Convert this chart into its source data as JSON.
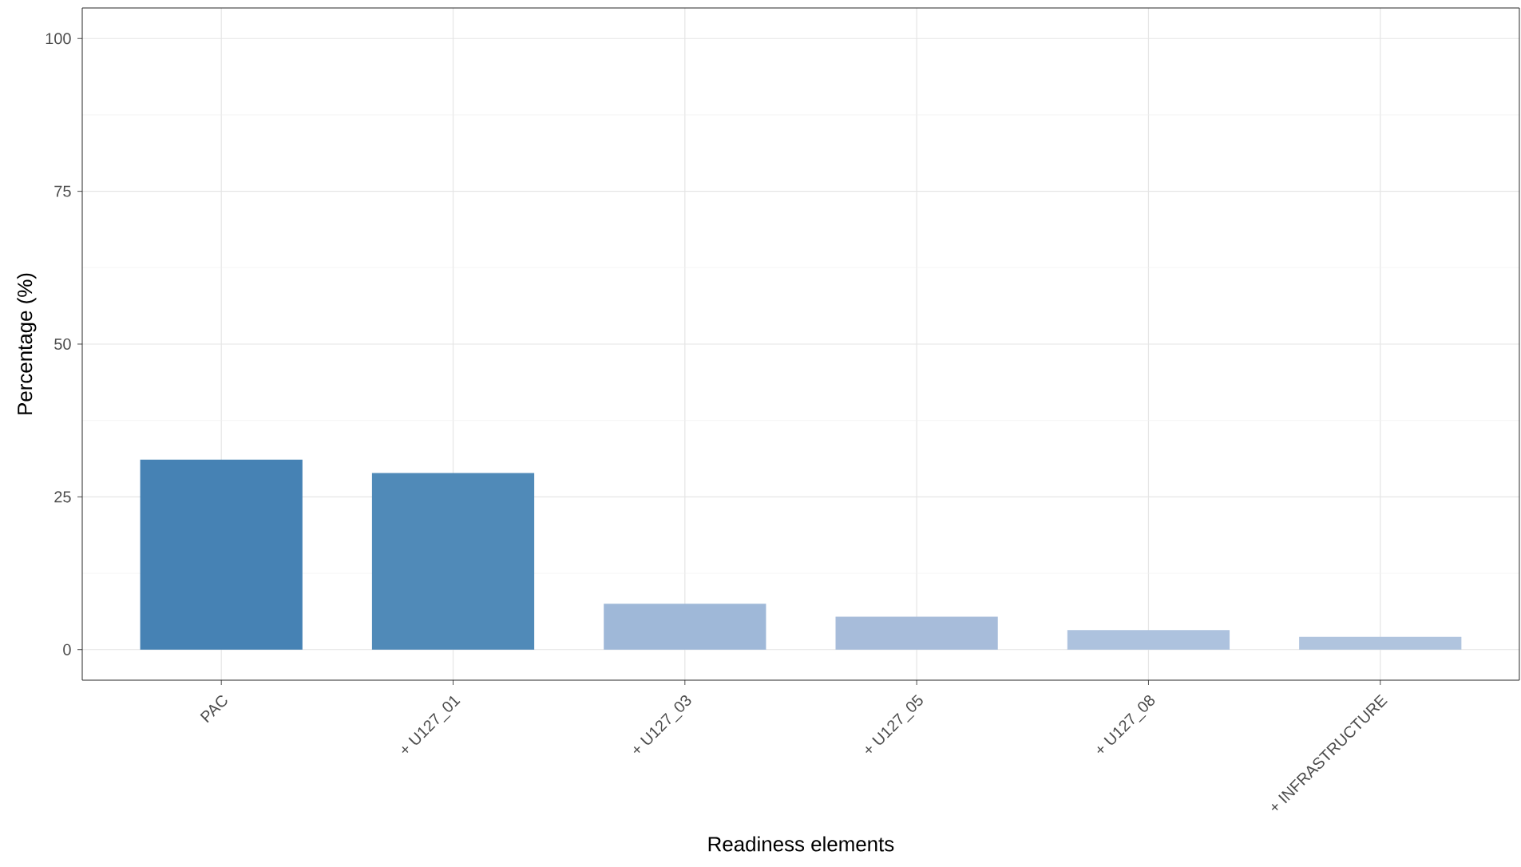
{
  "chart_data": {
    "type": "bar",
    "xlabel": "Readiness elements",
    "ylabel": "Percentage (%)",
    "categories": [
      "PAC",
      "+ U127_01",
      "+ U127_03",
      "+ U127_05",
      "+ U127_08",
      "+ INFRASTRUCTURE"
    ],
    "values": [
      31.1,
      28.9,
      7.5,
      5.4,
      3.2,
      2.1
    ],
    "colors": [
      "#4682b4",
      "#508ab8",
      "#9fb8d8",
      "#a7bcda",
      "#adc2de",
      "#b0c4de"
    ],
    "ylim": [
      -5,
      105
    ],
    "yticks": [
      0,
      25,
      50,
      75,
      100
    ],
    "grid": true
  }
}
